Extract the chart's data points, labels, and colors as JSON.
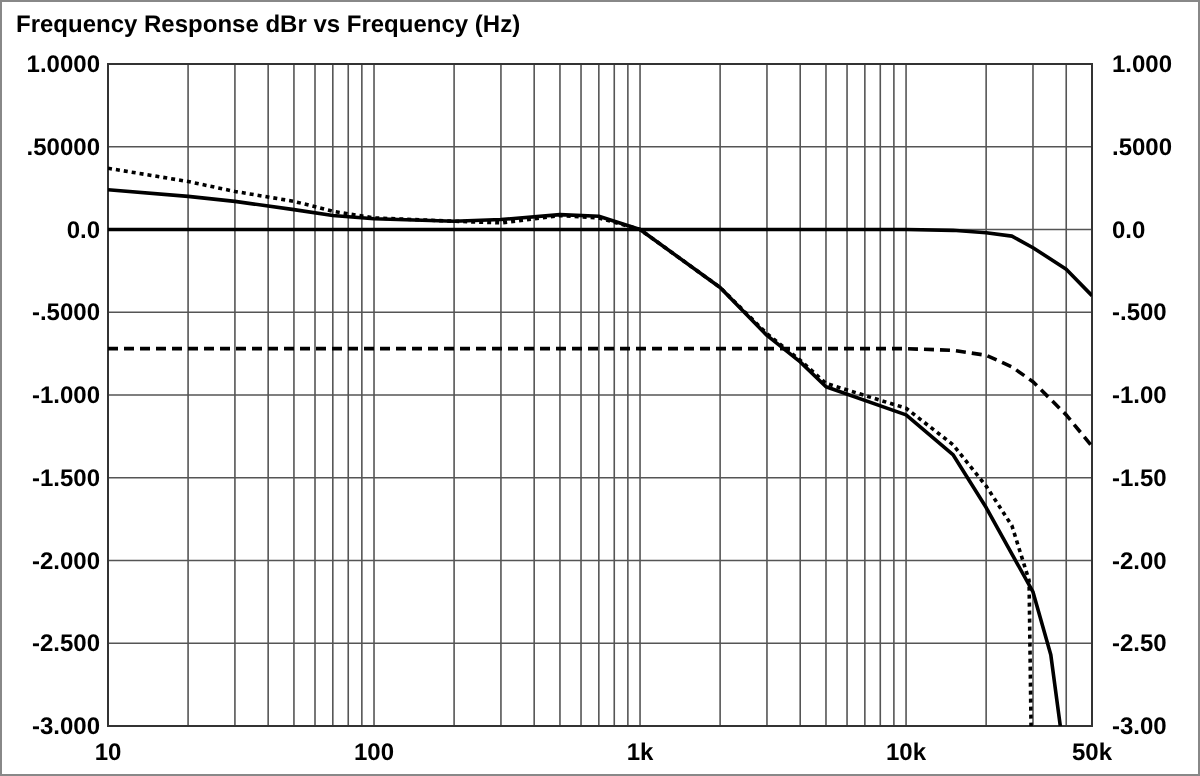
{
  "chart_data": {
    "type": "line",
    "title": "Frequency Response  dBr vs Frequency (Hz)",
    "log": "x",
    "grid": true,
    "xlim": [
      10,
      50000
    ],
    "xticks": [
      10,
      {
        "value": 20,
        "label": null
      },
      {
        "value": 30,
        "label": null
      },
      {
        "value": 40,
        "label": null
      },
      {
        "value": 50,
        "label": null
      },
      {
        "value": 60,
        "label": null
      },
      {
        "value": 70,
        "label": null
      },
      {
        "value": 80,
        "label": null
      },
      {
        "value": 90,
        "label": null
      },
      100,
      {
        "value": 200,
        "label": null
      },
      {
        "value": 300,
        "label": null
      },
      {
        "value": 400,
        "label": null
      },
      {
        "value": 500,
        "label": null
      },
      {
        "value": 600,
        "label": null
      },
      {
        "value": 700,
        "label": null
      },
      {
        "value": 800,
        "label": null
      },
      {
        "value": 900,
        "label": null
      },
      {
        "value": 1000,
        "label": "1k"
      },
      {
        "value": 2000,
        "label": null
      },
      {
        "value": 3000,
        "label": null
      },
      {
        "value": 4000,
        "label": null
      },
      {
        "value": 5000,
        "label": null
      },
      {
        "value": 6000,
        "label": null
      },
      {
        "value": 7000,
        "label": null
      },
      {
        "value": 8000,
        "label": null
      },
      {
        "value": 9000,
        "label": null
      },
      {
        "value": 10000,
        "label": "10k"
      },
      {
        "value": 20000,
        "label": null
      },
      {
        "value": 30000,
        "label": null
      },
      {
        "value": 40000,
        "label": null
      },
      {
        "value": 50000,
        "label": "50k"
      }
    ],
    "ylim": [
      -3,
      1
    ],
    "yticks": [
      {
        "value": 1,
        "label": "1.0000"
      },
      {
        "value": 0.5,
        "label": ".50000"
      },
      {
        "value": 0,
        "label": "0.0"
      },
      {
        "value": -0.5,
        "label": "-.5000"
      },
      {
        "value": -1,
        "label": "-1.000"
      },
      {
        "value": -1.5,
        "label": "-1.500"
      },
      {
        "value": -2,
        "label": "-2.000"
      },
      {
        "value": -2.5,
        "label": "-2.500"
      },
      {
        "value": -3,
        "label": "-3.000"
      }
    ],
    "y2lim": [
      -3,
      1
    ],
    "y2ticks": [
      {
        "value": 1,
        "label": "1.000"
      },
      {
        "value": 0.5,
        "label": ".5000"
      },
      {
        "value": 0,
        "label": "0.0"
      },
      {
        "value": -0.5,
        "label": "-.500"
      },
      {
        "value": -1,
        "label": "-1.00"
      },
      {
        "value": -1.5,
        "label": "-1.50"
      },
      {
        "value": -2,
        "label": "-2.00"
      },
      {
        "value": -2.5,
        "label": "-2.50"
      },
      {
        "value": -3,
        "label": "-3.00"
      }
    ],
    "series": [
      {
        "color": "#000000",
        "line_style": "solid",
        "x": [
          10,
          20,
          30,
          50,
          70,
          100,
          200,
          300,
          500,
          700,
          1000,
          2000,
          3000,
          4000,
          5000,
          10000,
          15000,
          20000,
          30000,
          35000,
          38000
        ],
        "values": [
          0.24,
          0.2,
          0.17,
          0.12,
          0.085,
          0.065,
          0.05,
          0.06,
          0.09,
          0.08,
          0,
          -0.35,
          -0.64,
          -0.8,
          -0.95,
          -1.12,
          -1.36,
          -1.68,
          -2.19,
          -2.57,
          -3
        ]
      },
      {
        "color": "#000000",
        "line_style": "dotted",
        "x": [
          10,
          20,
          30,
          50,
          70,
          100,
          200,
          300,
          500,
          700,
          1000,
          2000,
          3000,
          4000,
          5000,
          10000,
          15000,
          20000,
          25000,
          29000,
          29500
        ],
        "values": [
          0.37,
          0.29,
          0.23,
          0.17,
          0.11,
          0.07,
          0.05,
          0.04,
          0.085,
          0.07,
          0,
          -0.35,
          -0.63,
          -0.79,
          -0.93,
          -1.08,
          -1.3,
          -1.55,
          -1.79,
          -2.12,
          -3
        ]
      },
      {
        "color": "#000000",
        "line_style": "solid",
        "x": [
          10,
          10000,
          15000,
          20000,
          25000,
          30000,
          40000,
          50000
        ],
        "values": [
          0,
          0,
          -0.005,
          -0.02,
          -0.04,
          -0.11,
          -0.24,
          -0.4
        ]
      },
      {
        "color": "#000000",
        "line_style": "dashed",
        "x": [
          10,
          10000,
          15000,
          20000,
          25000,
          30000,
          40000,
          50000
        ],
        "values": [
          -0.72,
          -0.72,
          -0.73,
          -0.76,
          -0.83,
          -0.92,
          -1.12,
          -1.31
        ]
      }
    ]
  }
}
